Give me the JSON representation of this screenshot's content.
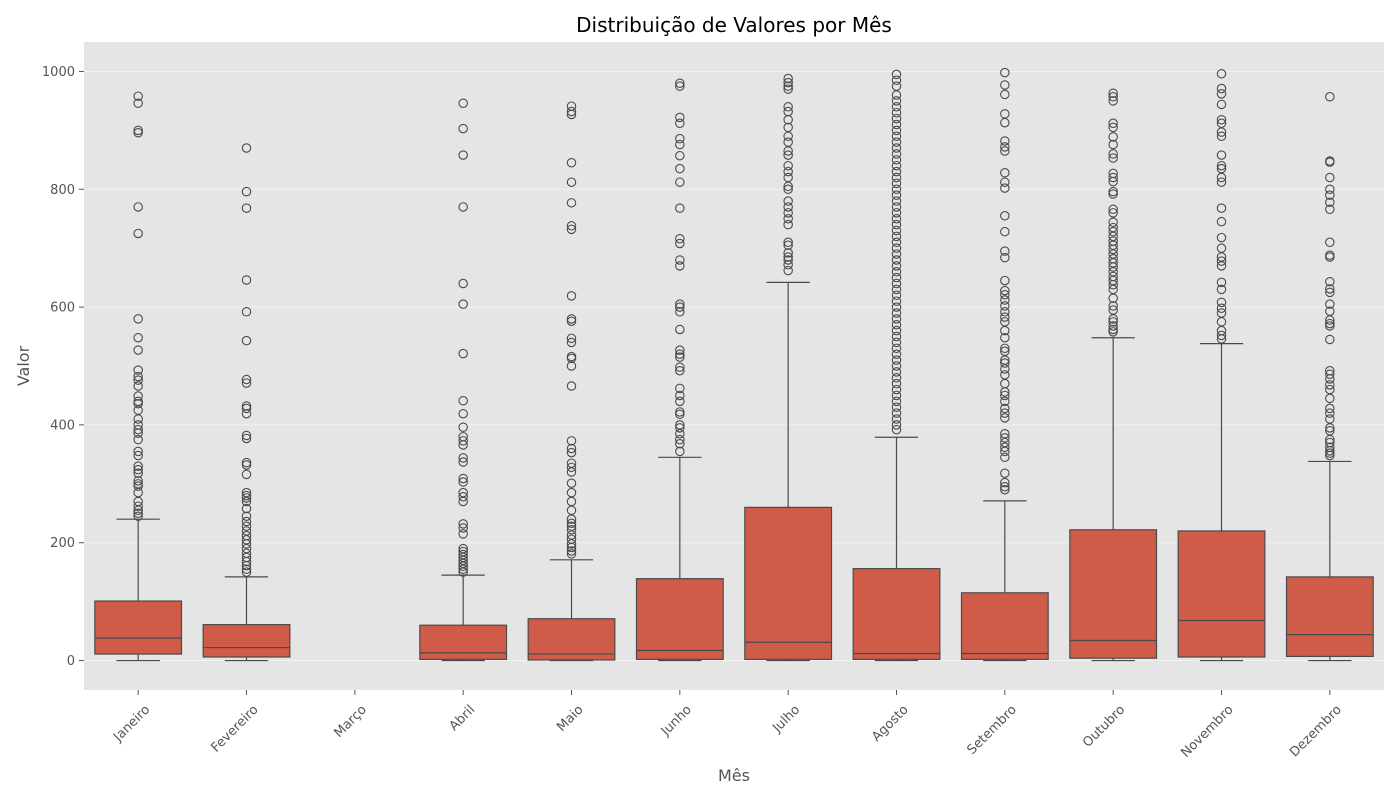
{
  "chart_data": {
    "type": "box",
    "title": "Distribuição de Valores por Mês",
    "xlabel": "Mês",
    "ylabel": "Valor",
    "ylim": [
      -50,
      1050
    ],
    "yticks": [
      0,
      200,
      400,
      600,
      800,
      1000
    ],
    "grid": true,
    "colors": {
      "box_fill": "#cf5b49",
      "line": "#4a4a4a",
      "background": "#e5e5e5",
      "grid": "#f2f2f2"
    },
    "categories": [
      "Janeiro",
      "Fevereiro",
      "Março",
      "Abril",
      "Maio",
      "Junho",
      "Julho",
      "Agosto",
      "Setembro",
      "Outubro",
      "Novembro",
      "Dezembro"
    ],
    "boxes": [
      {
        "min": 0,
        "q1": 11,
        "median": 38,
        "q3": 101,
        "max": 240,
        "outliers": [
          958,
          946,
          900,
          896,
          770,
          725,
          580,
          548,
          527,
          493,
          482,
          476,
          466,
          449,
          440,
          436,
          425,
          410,
          400,
          392,
          386,
          375,
          355,
          348,
          330,
          324,
          318,
          305,
          300,
          296,
          285,
          270,
          262,
          255,
          250,
          245
        ]
      },
      {
        "min": 0,
        "q1": 6,
        "median": 22,
        "q3": 61,
        "max": 142,
        "outliers": [
          870,
          796,
          768,
          646,
          592,
          543,
          477,
          471,
          432,
          428,
          419,
          382,
          377,
          336,
          332,
          316,
          285,
          280,
          276,
          270,
          258,
          245,
          236,
          228,
          220,
          212,
          205,
          198,
          190,
          182,
          175,
          168,
          161,
          155,
          150
        ]
      },
      null,
      {
        "min": 0,
        "q1": 2,
        "median": 13,
        "q3": 60,
        "max": 145,
        "outliers": [
          946,
          903,
          858,
          770,
          640,
          605,
          521,
          441,
          419,
          396,
          380,
          373,
          366,
          344,
          337,
          309,
          303,
          285,
          278,
          270,
          232,
          225,
          215,
          190,
          185,
          180,
          175,
          170,
          165,
          160,
          155,
          150
        ]
      },
      {
        "min": 0,
        "q1": 1,
        "median": 11,
        "q3": 71,
        "max": 171,
        "outliers": [
          941,
          932,
          927,
          845,
          812,
          777,
          738,
          732,
          619,
          580,
          576,
          547,
          540,
          516,
          513,
          500,
          466,
          373,
          360,
          353,
          335,
          328,
          320,
          301,
          285,
          270,
          255,
          240,
          233,
          228,
          222,
          213,
          206,
          198,
          192,
          186,
          181
        ]
      },
      {
        "min": 0,
        "q1": 2,
        "median": 17,
        "q3": 139,
        "max": 345,
        "outliers": [
          980,
          975,
          922,
          912,
          886,
          876,
          857,
          835,
          812,
          768,
          716,
          708,
          680,
          670,
          605,
          600,
          592,
          562,
          527,
          520,
          515,
          498,
          492,
          462,
          450,
          440,
          422,
          418,
          400,
          395,
          385,
          375,
          368,
          355
        ]
      },
      {
        "min": 0,
        "q1": 2,
        "median": 31,
        "q3": 260,
        "max": 642,
        "outliers": [
          988,
          981,
          975,
          970,
          940,
          932,
          918,
          905,
          890,
          880,
          865,
          858,
          840,
          830,
          820,
          805,
          800,
          780,
          770,
          760,
          750,
          740,
          710,
          705,
          692,
          685,
          680,
          672,
          662
        ]
      },
      {
        "min": 0,
        "q1": 2,
        "median": 12,
        "q3": 156,
        "max": 379,
        "outliers": [
          995,
          985,
          975,
          960,
          950,
          940,
          930,
          920,
          910,
          900,
          890,
          880,
          870,
          860,
          850,
          840,
          830,
          820,
          810,
          800,
          790,
          780,
          770,
          760,
          750,
          740,
          730,
          720,
          710,
          700,
          690,
          680,
          670,
          660,
          650,
          640,
          630,
          620,
          610,
          600,
          590,
          580,
          570,
          560,
          550,
          540,
          530,
          520,
          510,
          500,
          490,
          480,
          470,
          460,
          450,
          440,
          430,
          420,
          410,
          400,
          392
        ]
      },
      {
        "min": 0,
        "q1": 2,
        "median": 12,
        "q3": 115,
        "max": 271,
        "outliers": [
          998,
          977,
          961,
          928,
          913,
          882,
          872,
          865,
          828,
          812,
          802,
          755,
          728,
          695,
          684,
          645,
          628,
          621,
          612,
          602,
          592,
          583,
          575,
          560,
          548,
          530,
          525,
          510,
          505,
          495,
          485,
          470,
          456,
          450,
          440,
          428,
          420,
          412,
          385,
          378,
          370,
          362,
          355,
          345,
          318,
          302,
          295,
          290
        ]
      },
      {
        "min": 0,
        "q1": 4,
        "median": 34,
        "q3": 222,
        "max": 548,
        "outliers": [
          963,
          957,
          950,
          912,
          905,
          889,
          876,
          860,
          853,
          827,
          820,
          813,
          796,
          792,
          766,
          760,
          744,
          735,
          728,
          720,
          712,
          705,
          698,
          690,
          682,
          675,
          668,
          660,
          652,
          645,
          638,
          630,
          615,
          602,
          595,
          580,
          575,
          568,
          562,
          558
        ]
      },
      {
        "min": 0,
        "q1": 6,
        "median": 68,
        "q3": 220,
        "max": 538,
        "outliers": [
          996,
          971,
          962,
          944,
          918,
          912,
          897,
          890,
          858,
          840,
          835,
          820,
          812,
          768,
          745,
          718,
          700,
          685,
          678,
          670,
          642,
          630,
          608,
          598,
          590,
          575,
          560,
          552,
          546
        ]
      },
      {
        "min": 0,
        "q1": 7,
        "median": 44,
        "q3": 142,
        "max": 338,
        "outliers": [
          957,
          848,
          846,
          820,
          800,
          790,
          778,
          766,
          710,
          688,
          685,
          643,
          631,
          625,
          605,
          593,
          578,
          572,
          568,
          545,
          492,
          486,
          478,
          468,
          460,
          445,
          428,
          420,
          410,
          395,
          390,
          375,
          370,
          362,
          356,
          352,
          348
        ]
      }
    ]
  }
}
